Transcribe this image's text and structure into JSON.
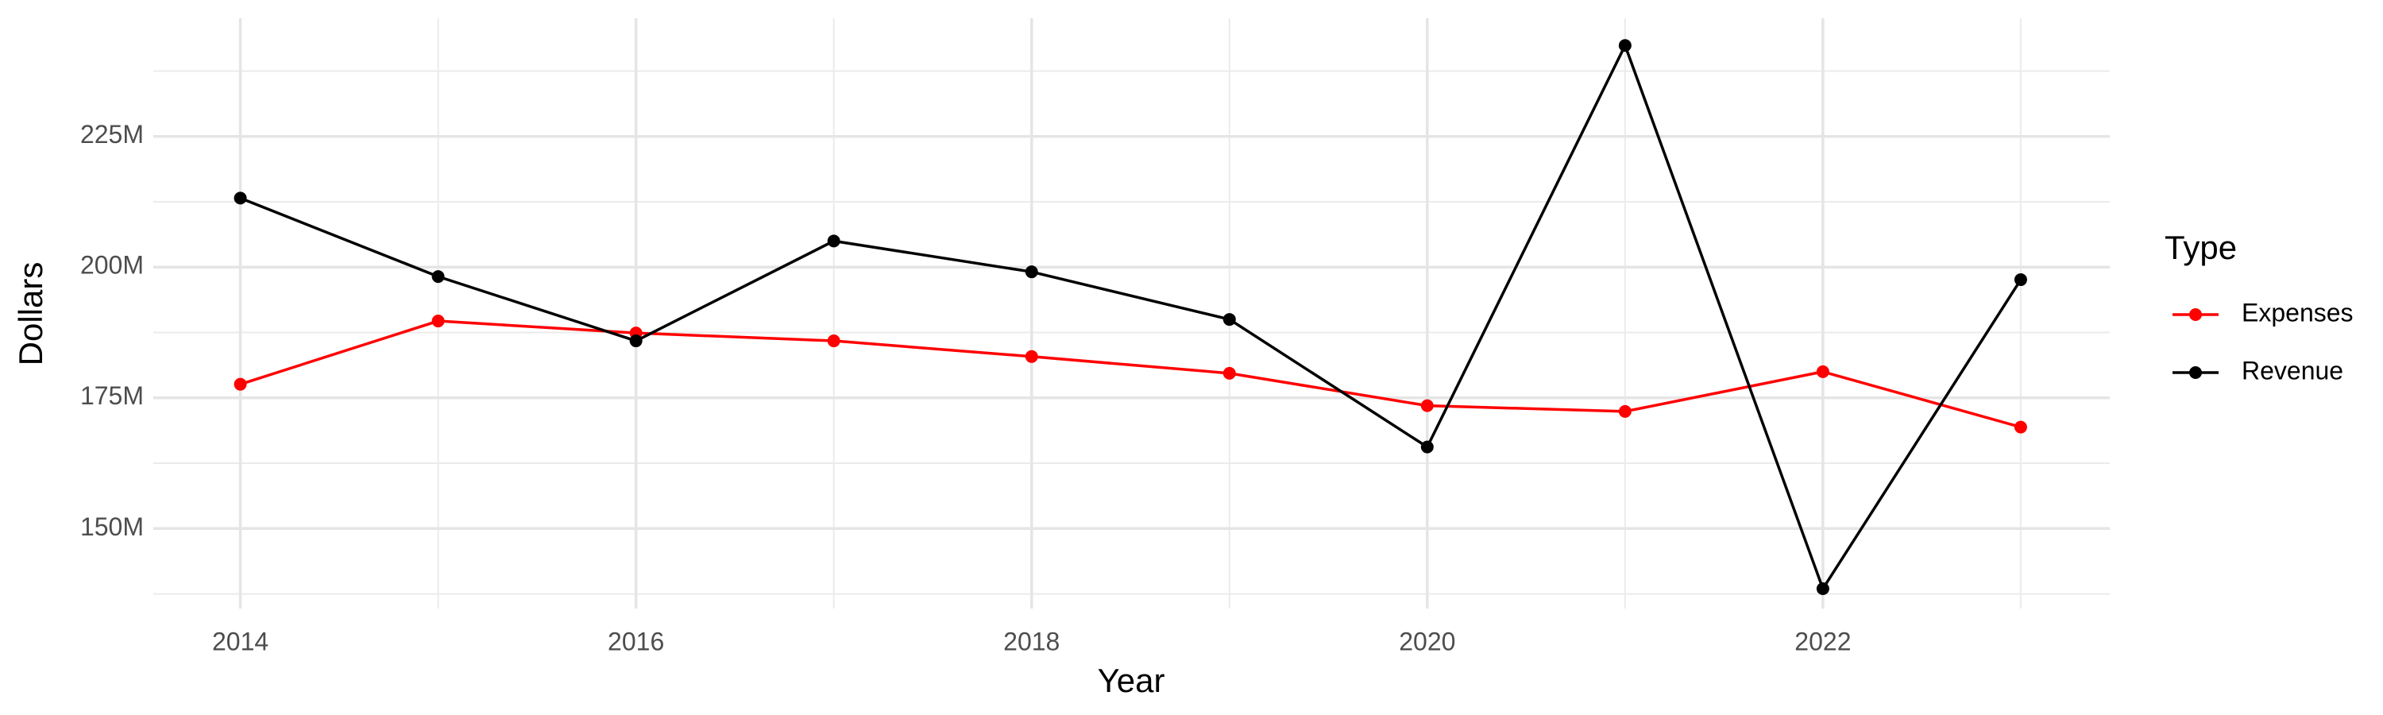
{
  "chart_data": {
    "type": "line",
    "x_label": "Year",
    "y_label": "Dollars",
    "legend_title": "Type",
    "x": [
      2014,
      2015,
      2016,
      2017,
      2018,
      2019,
      2020,
      2021,
      2022,
      2023
    ],
    "series": [
      {
        "name": "Expenses",
        "color": "#ff0000",
        "values": [
          177600000,
          189700000,
          187400000,
          185900000,
          182900000,
          179700000,
          173500000,
          172400000,
          180000000,
          169400000
        ]
      },
      {
        "name": "Revenue",
        "color": "#000000",
        "values": [
          213200000,
          198200000,
          185900000,
          205000000,
          199100000,
          190000000,
          165600000,
          242400000,
          138500000,
          197600000
        ]
      }
    ],
    "xlim": [
      2013.56,
      2023.45
    ],
    "xticks": [
      2014,
      2016,
      2018,
      2020,
      2022
    ],
    "ylim": [
      134700000,
      247600000
    ],
    "yticks": [
      {
        "value": 150000000,
        "label": "150M"
      },
      {
        "value": 175000000,
        "label": "175M"
      },
      {
        "value": 200000000,
        "label": "200M"
      },
      {
        "value": 225000000,
        "label": "225M"
      }
    ],
    "grid": true,
    "legend_position": "right"
  }
}
